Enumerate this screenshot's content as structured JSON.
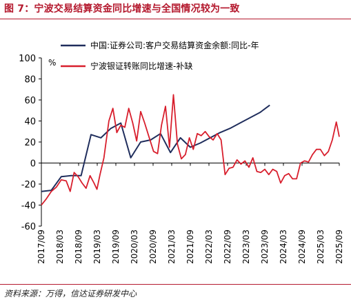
{
  "title": "图 7：宁波交易结算资金同比增速与全国情况较为一致",
  "source": "资料来源：万得，信达证券研发中心",
  "chart_data": {
    "type": "line",
    "unit_label": "%",
    "ylim": [
      -60,
      100
    ],
    "yticks": [
      -60,
      -40,
      -20,
      0,
      20,
      40,
      60,
      80,
      100
    ],
    "x_ticks": [
      "2017/09",
      "2018/03",
      "2018/09",
      "2019/03",
      "2019/09",
      "2020/03",
      "2020/09",
      "2021/03",
      "2021/09",
      "2022/03",
      "2022/09",
      "2023/03",
      "2023/09",
      "2024/03",
      "2024/09",
      "2025/03",
      "2025/09"
    ],
    "legend_position": "top",
    "series": [
      {
        "name": "中国:证券公司:客户交易结算资金余额:同比-年",
        "color": "#1f2d5c",
        "points": [
          [
            0,
            -27
          ],
          [
            1,
            -26
          ],
          [
            2,
            -13
          ],
          [
            3,
            -12
          ],
          [
            4,
            -12
          ],
          [
            5,
            27
          ],
          [
            6,
            24
          ],
          [
            7,
            33
          ],
          [
            8,
            38
          ],
          [
            9,
            5
          ],
          [
            10,
            20
          ],
          [
            11,
            22
          ],
          [
            12,
            28
          ],
          [
            13,
            10
          ],
          [
            14,
            24
          ],
          [
            15,
            15
          ],
          [
            16,
            19
          ],
          [
            17,
            24
          ],
          [
            18,
            29
          ],
          [
            19,
            33
          ],
          [
            20,
            38
          ],
          [
            21,
            43
          ],
          [
            22,
            48
          ],
          [
            23,
            55
          ]
        ]
      },
      {
        "name": "宁波银证转账同比增速-补缺",
        "color": "#d81e2c",
        "points": [
          [
            0,
            -40
          ],
          [
            0.5,
            -34
          ],
          [
            1,
            -27
          ],
          [
            1.5,
            -23
          ],
          [
            2,
            -16
          ],
          [
            2.5,
            -17
          ],
          [
            2.9,
            -27
          ],
          [
            3.3,
            -9
          ],
          [
            3.7,
            -13
          ],
          [
            4.1,
            -19
          ],
          [
            4.5,
            -24
          ],
          [
            4.9,
            -12
          ],
          [
            5.3,
            -19
          ],
          [
            5.6,
            -25
          ],
          [
            5.9,
            -11
          ],
          [
            6.3,
            5
          ],
          [
            6.8,
            40
          ],
          [
            7.2,
            52
          ],
          [
            7.6,
            29
          ],
          [
            8.0,
            36
          ],
          [
            8.4,
            34
          ],
          [
            8.8,
            52
          ],
          [
            9.2,
            38
          ],
          [
            9.6,
            21
          ],
          [
            10.0,
            49
          ],
          [
            10.4,
            38
          ],
          [
            10.8,
            26
          ],
          [
            11.3,
            11
          ],
          [
            11.7,
            9
          ],
          [
            12.1,
            36
          ],
          [
            12.5,
            54
          ],
          [
            12.9,
            15
          ],
          [
            13.3,
            65
          ],
          [
            13.7,
            18
          ],
          [
            14.1,
            4
          ],
          [
            14.5,
            8
          ],
          [
            14.9,
            24
          ],
          [
            15.3,
            13
          ],
          [
            15.7,
            28
          ],
          [
            16.1,
            26
          ],
          [
            16.5,
            30
          ],
          [
            16.9,
            25
          ],
          [
            17.3,
            22
          ],
          [
            17.7,
            28
          ],
          [
            18.1,
            22
          ],
          [
            18.5,
            -11
          ],
          [
            18.9,
            -5
          ],
          [
            19.3,
            -4
          ],
          [
            19.7,
            3
          ],
          [
            20.1,
            -1
          ],
          [
            20.5,
            2
          ],
          [
            20.9,
            -4
          ],
          [
            21.3,
            5
          ],
          [
            21.7,
            -8
          ],
          [
            22.1,
            -9
          ],
          [
            22.5,
            -6
          ],
          [
            22.9,
            -11
          ],
          [
            23.3,
            -6
          ],
          [
            23.7,
            -8
          ],
          [
            24.1,
            -19
          ],
          [
            24.5,
            -12
          ],
          [
            24.9,
            -10
          ],
          [
            25.3,
            -15
          ],
          [
            25.7,
            -15
          ],
          [
            26.1,
            0
          ],
          [
            26.5,
            2
          ],
          [
            26.9,
            1
          ],
          [
            27.3,
            8
          ],
          [
            27.7,
            13
          ],
          [
            28.1,
            13
          ],
          [
            28.5,
            7
          ],
          [
            28.9,
            11
          ],
          [
            29.3,
            22
          ],
          [
            29.7,
            39
          ],
          [
            30.0,
            25
          ]
        ]
      }
    ]
  }
}
